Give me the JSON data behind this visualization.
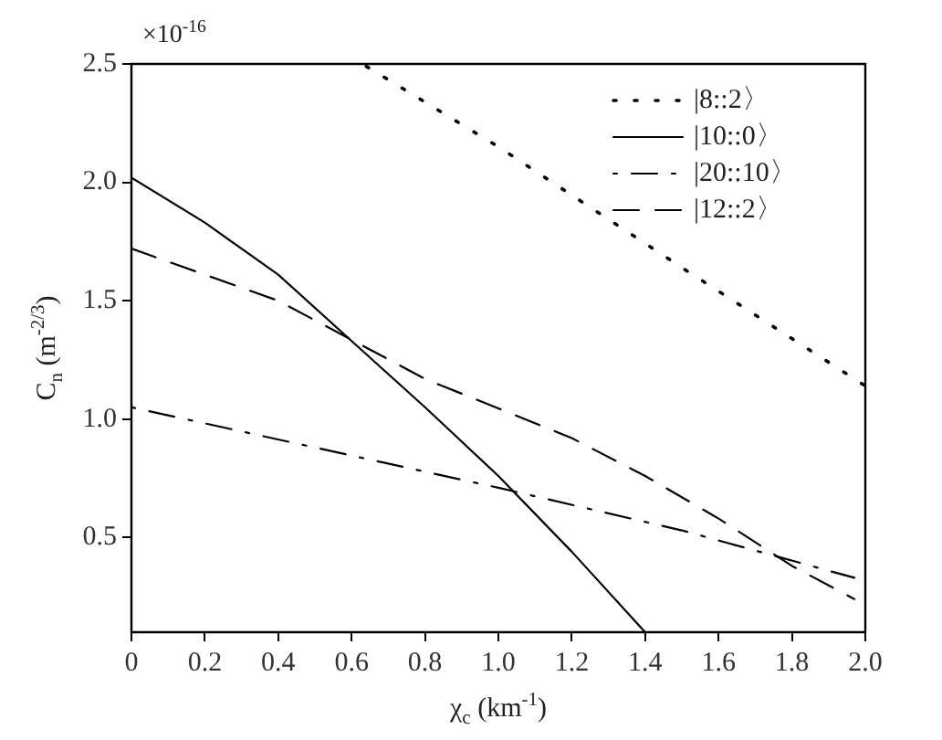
{
  "chart_data": {
    "type": "line",
    "xlabel": "χ$_{c}$ (km$^{-1}$)",
    "ylabel": "C$_{n}$ (m$^{-2/3}$)",
    "annotations": [
      "×10$^{-16}$"
    ],
    "xlim": [
      0,
      2
    ],
    "xticks": [
      0,
      0.2,
      0.4,
      0.6,
      0.8,
      {
        "value": 1,
        "label": "1.0"
      },
      1.2,
      1.4,
      1.6,
      1.8,
      {
        "value": 2,
        "label": "2.0"
      }
    ],
    "ylim": [
      0.1,
      2.5
    ],
    "yticks": [
      0.5,
      {
        "value": 1,
        "label": "1.0"
      },
      1.5,
      {
        "value": 2,
        "label": "2.0"
      },
      2.5
    ],
    "grid": false,
    "legend": "top right",
    "marker": "none",
    "series": [
      {
        "name": "|8::2〉",
        "color": "#000000",
        "line_style": "dotted",
        "x": [
          0.64,
          1.0,
          1.5,
          2.0
        ],
        "values": [
          2.49,
          2.15,
          1.64,
          1.14
        ]
      },
      {
        "name": "|10::0〉",
        "color": "#000000",
        "line_style": "solid",
        "x": [
          0,
          0.2,
          0.4,
          0.6,
          0.8,
          1.0,
          1.2,
          1.4
        ],
        "values": [
          2.02,
          1.83,
          1.61,
          1.33,
          1.05,
          0.76,
          0.44,
          0.1
        ]
      },
      {
        "name": "|20::10〉",
        "color": "#000000",
        "line_style": "dashdot",
        "x": [
          0,
          0.5,
          1.0,
          1.5,
          1.97
        ],
        "values": [
          1.05,
          0.88,
          0.71,
          0.53,
          0.33
        ]
      },
      {
        "name": "|12::2〉",
        "color": "#000000",
        "line_style": "dashed",
        "x": [
          0,
          0.4,
          0.8,
          1.2,
          1.4,
          1.6,
          1.8,
          1.97
        ],
        "values": [
          1.72,
          1.5,
          1.17,
          0.92,
          0.76,
          0.58,
          0.38,
          0.24
        ]
      }
    ]
  }
}
